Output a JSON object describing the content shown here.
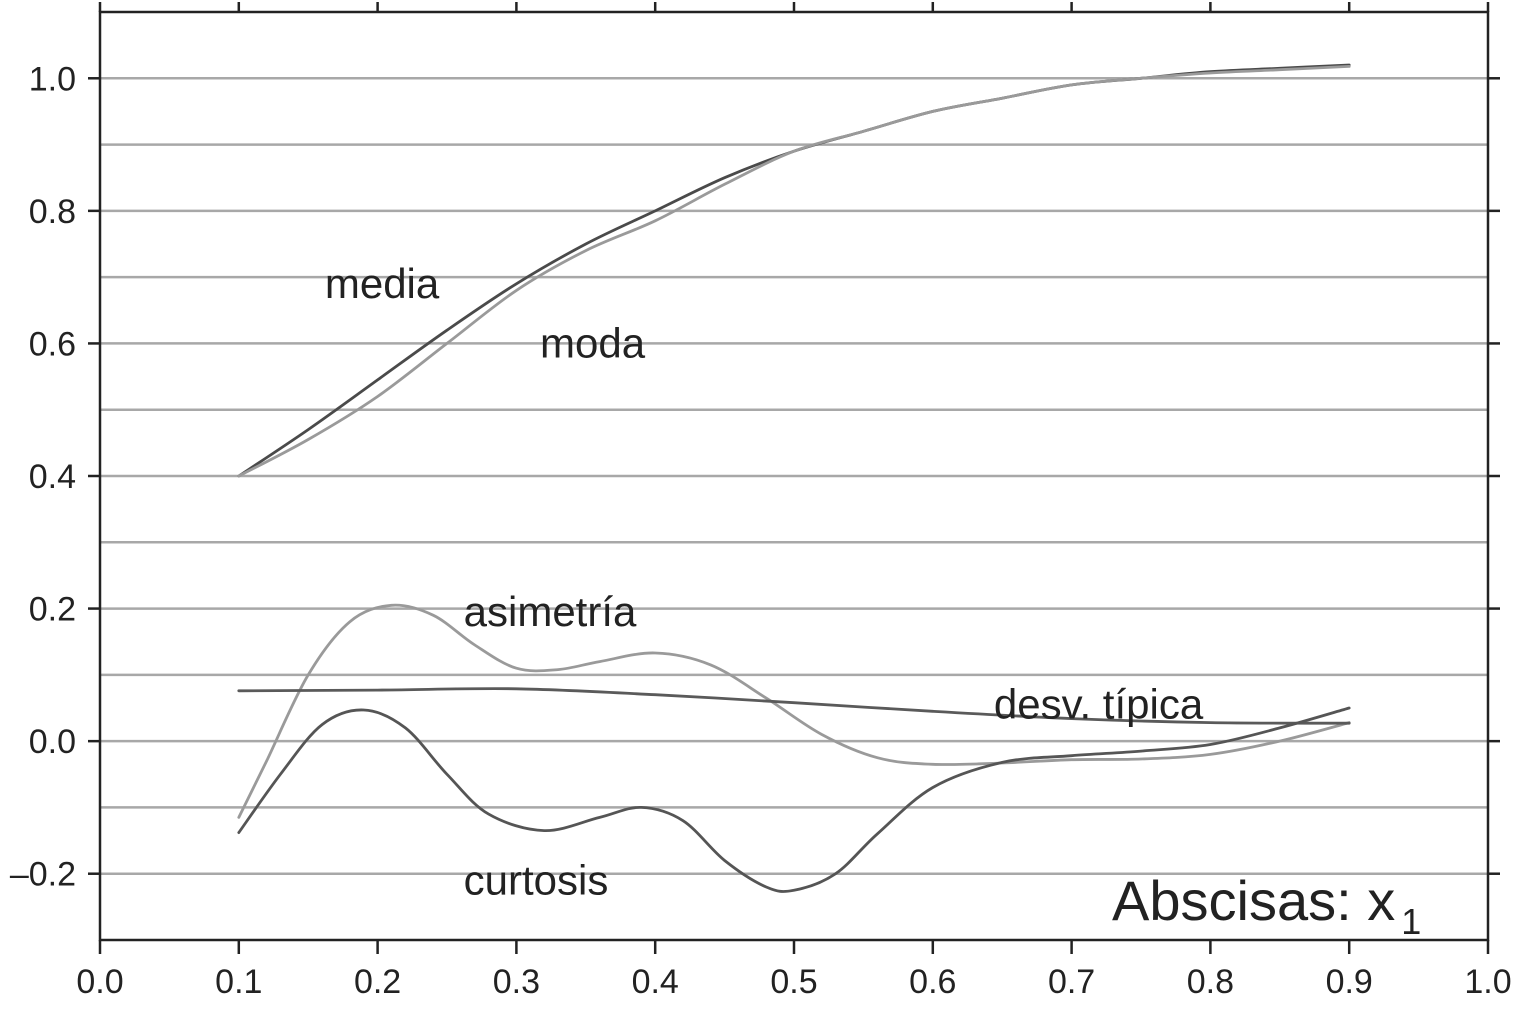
{
  "chart_data": {
    "type": "line",
    "xlabel_main": "Abscisas: x",
    "xlabel_sub": "1",
    "xlim": [
      0.0,
      1.0
    ],
    "ylim": [
      -0.3,
      1.1
    ],
    "x_ticks": [
      "0.0",
      "0.1",
      "0.2",
      "0.3",
      "0.4",
      "0.5",
      "0.6",
      "0.7",
      "0.8",
      "0.9",
      "1.0"
    ],
    "y_ticks": [
      {
        "value": -0.2,
        "label": "–0.2"
      },
      {
        "value": 0.0,
        "label": "0.0"
      },
      {
        "value": 0.2,
        "label": "0.2"
      },
      {
        "value": 0.4,
        "label": "0.4"
      },
      {
        "value": 0.6,
        "label": "0.6"
      },
      {
        "value": 0.8,
        "label": "0.8"
      },
      {
        "value": 1.0,
        "label": "1.0"
      }
    ],
    "grid_y": [
      -0.2,
      -0.1,
      0.0,
      0.1,
      0.2,
      0.3,
      0.4,
      0.5,
      0.6,
      0.7,
      0.8,
      0.9,
      1.0
    ],
    "grid": true,
    "series": [
      {
        "name": "media",
        "color": "#4a4a4a",
        "x": [
          0.1,
          0.15,
          0.2,
          0.25,
          0.3,
          0.35,
          0.4,
          0.45,
          0.5,
          0.55,
          0.6,
          0.65,
          0.7,
          0.75,
          0.8,
          0.85,
          0.9
        ],
        "y": [
          0.4,
          0.47,
          0.545,
          0.62,
          0.69,
          0.75,
          0.8,
          0.85,
          0.89,
          0.92,
          0.95,
          0.97,
          0.99,
          1.0,
          1.01,
          1.015,
          1.02
        ]
      },
      {
        "name": "moda",
        "color": "#9a9a9a",
        "x": [
          0.1,
          0.15,
          0.2,
          0.25,
          0.3,
          0.35,
          0.4,
          0.45,
          0.5,
          0.55,
          0.6,
          0.65,
          0.7,
          0.75,
          0.8,
          0.85,
          0.9
        ],
        "y": [
          0.4,
          0.455,
          0.52,
          0.6,
          0.68,
          0.74,
          0.785,
          0.84,
          0.89,
          0.92,
          0.95,
          0.97,
          0.99,
          1.0,
          1.008,
          1.013,
          1.018
        ]
      },
      {
        "name": "asimetría",
        "color": "#9a9a9a",
        "x": [
          0.1,
          0.12,
          0.15,
          0.18,
          0.21,
          0.24,
          0.27,
          0.3,
          0.33,
          0.36,
          0.4,
          0.44,
          0.48,
          0.52,
          0.56,
          0.6,
          0.65,
          0.7,
          0.75,
          0.8,
          0.85,
          0.9
        ],
        "y": [
          -0.115,
          -0.03,
          0.1,
          0.18,
          0.205,
          0.19,
          0.145,
          0.11,
          0.108,
          0.12,
          0.133,
          0.115,
          0.065,
          0.01,
          -0.025,
          -0.035,
          -0.033,
          -0.028,
          -0.027,
          -0.02,
          0.0,
          0.028
        ]
      },
      {
        "name": "desv. típica",
        "color": "#5a5a5a",
        "x": [
          0.1,
          0.2,
          0.3,
          0.4,
          0.5,
          0.6,
          0.7,
          0.8,
          0.9
        ],
        "y": [
          0.076,
          0.077,
          0.079,
          0.07,
          0.058,
          0.045,
          0.034,
          0.028,
          0.027
        ]
      },
      {
        "name": "curtosis",
        "color": "#555555",
        "x": [
          0.1,
          0.13,
          0.16,
          0.19,
          0.22,
          0.25,
          0.28,
          0.32,
          0.36,
          0.39,
          0.42,
          0.45,
          0.48,
          0.5,
          0.53,
          0.56,
          0.6,
          0.65,
          0.7,
          0.75,
          0.8,
          0.85,
          0.9
        ],
        "y": [
          -0.138,
          -0.05,
          0.025,
          0.047,
          0.02,
          -0.05,
          -0.11,
          -0.135,
          -0.115,
          -0.1,
          -0.12,
          -0.18,
          -0.22,
          -0.225,
          -0.2,
          -0.14,
          -0.07,
          -0.032,
          -0.022,
          -0.015,
          -0.005,
          0.02,
          0.05
        ]
      }
    ],
    "annotations": [
      {
        "text": "media",
        "x": 0.162,
        "y": 0.69
      },
      {
        "text": "moda",
        "x": 0.317,
        "y": 0.6
      },
      {
        "text": "asimetría",
        "x": 0.262,
        "y": 0.195
      },
      {
        "text": "desv. típica",
        "x": 0.644,
        "y": 0.055
      },
      {
        "text": "curtosis",
        "x": 0.262,
        "y": -0.21
      }
    ]
  }
}
